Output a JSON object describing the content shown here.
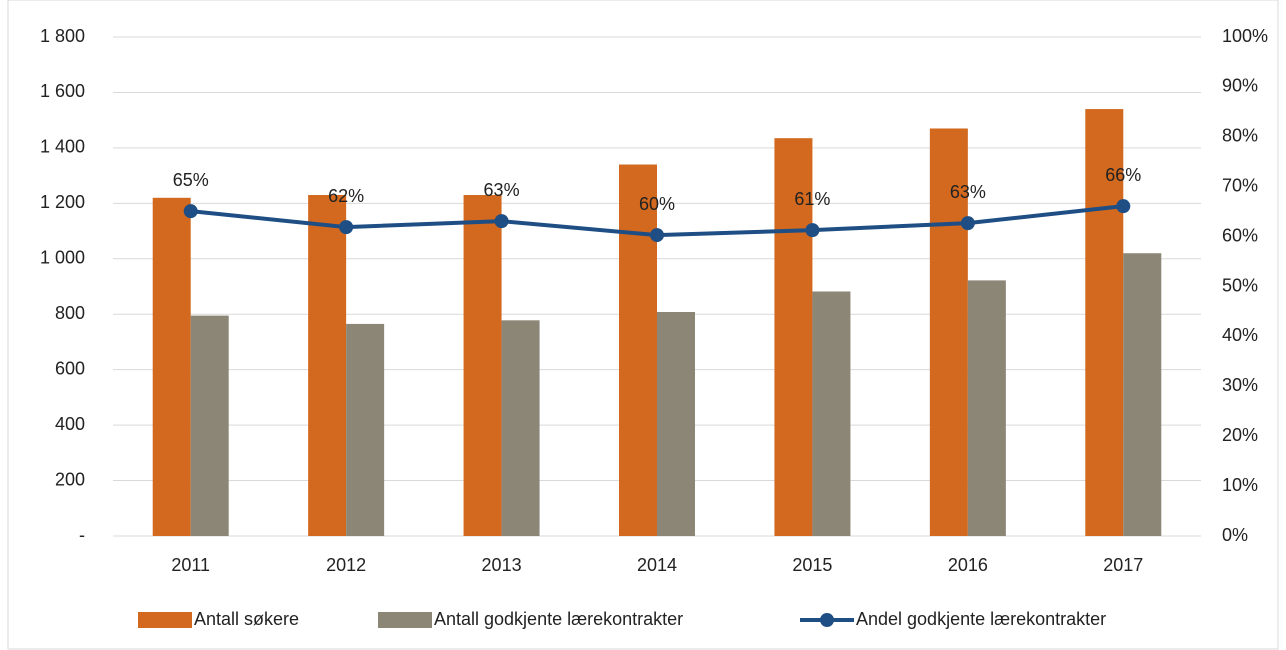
{
  "chart_data": {
    "type": "bar_line",
    "categories": [
      "2011",
      "2012",
      "2013",
      "2014",
      "2015",
      "2016",
      "2017"
    ],
    "series": [
      {
        "name": "Antall søkere",
        "color": "#d2691e",
        "type": "bar",
        "values": [
          1220,
          1230,
          1230,
          1340,
          1435,
          1470,
          1540
        ]
      },
      {
        "name": "Antall godkjente lærekontrakter",
        "color": "#8c8677",
        "type": "bar",
        "values": [
          795,
          765,
          778,
          808,
          882,
          922,
          1020
        ]
      },
      {
        "name": "Andel godkjente lærekontrakter",
        "color": "#1f4e85",
        "type": "line",
        "axis": "y2",
        "values": [
          65.1,
          61.9,
          63.1,
          60.3,
          61.3,
          62.7,
          66.1
        ],
        "value_labels": [
          "65%",
          "62%",
          "63%",
          "60%",
          "61%",
          "63%",
          "66%"
        ]
      }
    ],
    "ylim": [
      0,
      1800
    ],
    "yticks": [
      {
        "value": 0,
        "label": "-"
      },
      200,
      400,
      600,
      800,
      {
        "value": 1000,
        "label": "1 000"
      },
      {
        "value": 1200,
        "label": "1 200"
      },
      {
        "value": 1400,
        "label": "1 400"
      },
      {
        "value": 1600,
        "label": "1 600"
      },
      {
        "value": 1800,
        "label": "1 800"
      }
    ],
    "y2lim": [
      0,
      100
    ],
    "y2ticks": [
      {
        "value": 0,
        "label": "0%"
      },
      {
        "value": 10,
        "label": "10%"
      },
      {
        "value": 20,
        "label": "20%"
      },
      {
        "value": 30,
        "label": "30%"
      },
      {
        "value": 40,
        "label": "40%"
      },
      {
        "value": 50,
        "label": "50%"
      },
      {
        "value": 60,
        "label": "60%"
      },
      {
        "value": 70,
        "label": "70%"
      },
      {
        "value": 80,
        "label": "80%"
      },
      {
        "value": 90,
        "label": "90%"
      },
      {
        "value": 100,
        "label": "100%"
      }
    ],
    "grid": true,
    "legend": "bottom"
  }
}
